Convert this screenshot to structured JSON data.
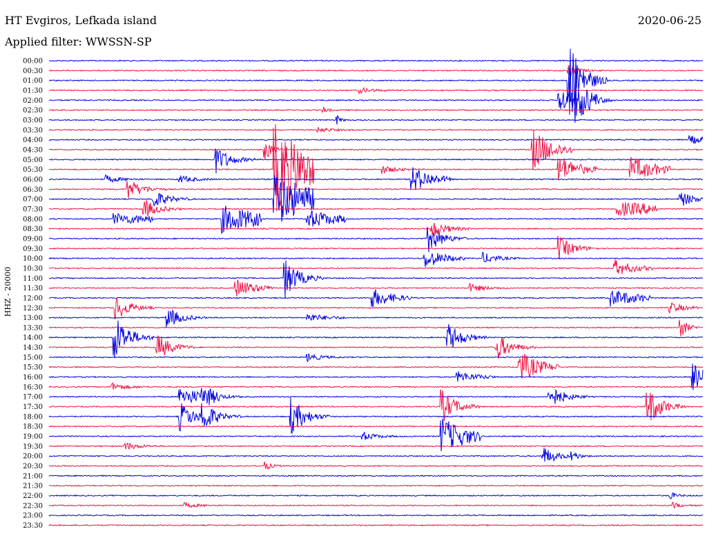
{
  "header": {
    "title": "HT Evgiros, Lefkada island",
    "filter": "Applied filter: WWSSN-SP",
    "date": "2020-06-25"
  },
  "colors": {
    "trace_a": "#0000dd",
    "trace_b": "#ee1144",
    "background": "#ffffff"
  },
  "chart_data": {
    "type": "line",
    "subtype": "helicorder",
    "ylabel": "HHZ - 20000",
    "line_colors_alternating": [
      "#0000dd",
      "#ee1144"
    ],
    "row_labels": [
      "00:00",
      "00:30",
      "01:00",
      "01:30",
      "02:00",
      "02:30",
      "03:00",
      "03:30",
      "04:00",
      "04:30",
      "05:00",
      "05:30",
      "06:00",
      "06:30",
      "07:00",
      "07:30",
      "08:00",
      "08:30",
      "09:00",
      "09:30",
      "10:00",
      "10:30",
      "11:00",
      "11:30",
      "12:00",
      "12:30",
      "13:00",
      "13:30",
      "14:00",
      "14:30",
      "15:00",
      "15:30",
      "16:00",
      "16:30",
      "17:00",
      "17:30",
      "18:00",
      "18:30",
      "19:00",
      "19:30",
      "20:00",
      "20:30",
      "21:00",
      "21:30",
      "22:00",
      "22:30",
      "23:00",
      "23:30"
    ],
    "events": [
      {
        "row": 1,
        "x": 0.795,
        "amp": 10,
        "dur": 0.012
      },
      {
        "row": 2,
        "x": 0.795,
        "amp": 60,
        "dur": 0.02
      },
      {
        "row": 3,
        "x": 0.475,
        "amp": 4,
        "dur": 0.02
      },
      {
        "row": 4,
        "x": 0.78,
        "amp": 18,
        "dur": 0.04
      },
      {
        "row": 4,
        "x": 0.805,
        "amp": 26,
        "dur": 0.02
      },
      {
        "row": 5,
        "x": 0.42,
        "amp": 4,
        "dur": 0.008
      },
      {
        "row": 6,
        "x": 0.44,
        "amp": 8,
        "dur": 0.005
      },
      {
        "row": 7,
        "x": 0.41,
        "amp": 4,
        "dur": 0.02
      },
      {
        "row": 8,
        "x": 0.98,
        "amp": 6,
        "dur": 0.03
      },
      {
        "row": 9,
        "x": 0.74,
        "amp": 30,
        "dur": 0.03
      },
      {
        "row": 9,
        "x": 0.33,
        "amp": 18,
        "dur": 0.01
      },
      {
        "row": 10,
        "x": 0.255,
        "amp": 20,
        "dur": 0.02
      },
      {
        "row": 11,
        "x": 0.345,
        "amp": 70,
        "dur": 0.05
      },
      {
        "row": 11,
        "x": 0.78,
        "amp": 20,
        "dur": 0.03
      },
      {
        "row": 11,
        "x": 0.89,
        "amp": 18,
        "dur": 0.04
      },
      {
        "row": 11,
        "x": 0.51,
        "amp": 6,
        "dur": 0.02
      },
      {
        "row": 12,
        "x": 0.555,
        "amp": 20,
        "dur": 0.03
      },
      {
        "row": 12,
        "x": 0.085,
        "amp": 6,
        "dur": 0.02
      },
      {
        "row": 12,
        "x": 0.2,
        "amp": 6,
        "dur": 0.02
      },
      {
        "row": 13,
        "x": 0.12,
        "amp": 16,
        "dur": 0.02
      },
      {
        "row": 14,
        "x": 0.345,
        "amp": 40,
        "dur": 0.06
      },
      {
        "row": 14,
        "x": 0.16,
        "amp": 14,
        "dur": 0.02
      },
      {
        "row": 14,
        "x": 0.965,
        "amp": 12,
        "dur": 0.02
      },
      {
        "row": 15,
        "x": 0.145,
        "amp": 14,
        "dur": 0.02
      },
      {
        "row": 15,
        "x": 0.87,
        "amp": 10,
        "dur": 0.12
      },
      {
        "row": 16,
        "x": 0.265,
        "amp": 20,
        "dur": 0.08
      },
      {
        "row": 16,
        "x": 0.1,
        "amp": 8,
        "dur": 0.08
      },
      {
        "row": 16,
        "x": 0.395,
        "amp": 14,
        "dur": 0.05
      },
      {
        "row": 17,
        "x": 0.585,
        "amp": 14,
        "dur": 0.02
      },
      {
        "row": 18,
        "x": 0.58,
        "amp": 20,
        "dur": 0.02
      },
      {
        "row": 19,
        "x": 0.78,
        "amp": 18,
        "dur": 0.02
      },
      {
        "row": 20,
        "x": 0.575,
        "amp": 14,
        "dur": 0.03
      },
      {
        "row": 20,
        "x": 0.665,
        "amp": 8,
        "dur": 0.02
      },
      {
        "row": 21,
        "x": 0.865,
        "amp": 12,
        "dur": 0.03
      },
      {
        "row": 22,
        "x": 0.36,
        "amp": 30,
        "dur": 0.02
      },
      {
        "row": 23,
        "x": 0.285,
        "amp": 14,
        "dur": 0.03
      },
      {
        "row": 23,
        "x": 0.645,
        "amp": 6,
        "dur": 0.02
      },
      {
        "row": 24,
        "x": 0.495,
        "amp": 14,
        "dur": 0.03
      },
      {
        "row": 24,
        "x": 0.86,
        "amp": 12,
        "dur": 0.05
      },
      {
        "row": 25,
        "x": 0.1,
        "amp": 20,
        "dur": 0.02
      },
      {
        "row": 25,
        "x": 0.95,
        "amp": 8,
        "dur": 0.02
      },
      {
        "row": 26,
        "x": 0.18,
        "amp": 16,
        "dur": 0.02
      },
      {
        "row": 26,
        "x": 0.395,
        "amp": 6,
        "dur": 0.03
      },
      {
        "row": 27,
        "x": 0.965,
        "amp": 16,
        "dur": 0.01
      },
      {
        "row": 28,
        "x": 0.1,
        "amp": 36,
        "dur": 0.02
      },
      {
        "row": 28,
        "x": 0.61,
        "amp": 22,
        "dur": 0.02
      },
      {
        "row": 29,
        "x": 0.165,
        "amp": 20,
        "dur": 0.02
      },
      {
        "row": 29,
        "x": 0.685,
        "amp": 20,
        "dur": 0.02
      },
      {
        "row": 30,
        "x": 0.395,
        "amp": 6,
        "dur": 0.02
      },
      {
        "row": 31,
        "x": 0.72,
        "amp": 24,
        "dur": 0.03
      },
      {
        "row": 32,
        "x": 0.985,
        "amp": 20,
        "dur": 0.02
      },
      {
        "row": 32,
        "x": 0.625,
        "amp": 8,
        "dur": 0.03
      },
      {
        "row": 33,
        "x": 0.095,
        "amp": 6,
        "dur": 0.02
      },
      {
        "row": 34,
        "x": 0.2,
        "amp": 14,
        "dur": 0.04
      },
      {
        "row": 34,
        "x": 0.235,
        "amp": 12,
        "dur": 0.02
      },
      {
        "row": 34,
        "x": 0.765,
        "amp": 18,
        "dur": 0.02
      },
      {
        "row": 35,
        "x": 0.6,
        "amp": 26,
        "dur": 0.02
      },
      {
        "row": 35,
        "x": 0.915,
        "amp": 30,
        "dur": 0.02
      },
      {
        "row": 36,
        "x": 0.2,
        "amp": 22,
        "dur": 0.02
      },
      {
        "row": 36,
        "x": 0.235,
        "amp": 20,
        "dur": 0.02
      },
      {
        "row": 36,
        "x": 0.37,
        "amp": 28,
        "dur": 0.02
      },
      {
        "row": 38,
        "x": 0.6,
        "amp": 28,
        "dur": 0.04
      },
      {
        "row": 38,
        "x": 0.48,
        "amp": 6,
        "dur": 0.02
      },
      {
        "row": 39,
        "x": 0.115,
        "amp": 6,
        "dur": 0.02
      },
      {
        "row": 40,
        "x": 0.755,
        "amp": 14,
        "dur": 0.02
      },
      {
        "row": 40,
        "x": 0.8,
        "amp": 6,
        "dur": 0.01
      },
      {
        "row": 41,
        "x": 0.33,
        "amp": 6,
        "dur": 0.01
      },
      {
        "row": 44,
        "x": 0.95,
        "amp": 5,
        "dur": 0.01
      },
      {
        "row": 45,
        "x": 0.205,
        "amp": 4,
        "dur": 0.02
      },
      {
        "row": 45,
        "x": 0.955,
        "amp": 4,
        "dur": 0.01
      }
    ]
  }
}
